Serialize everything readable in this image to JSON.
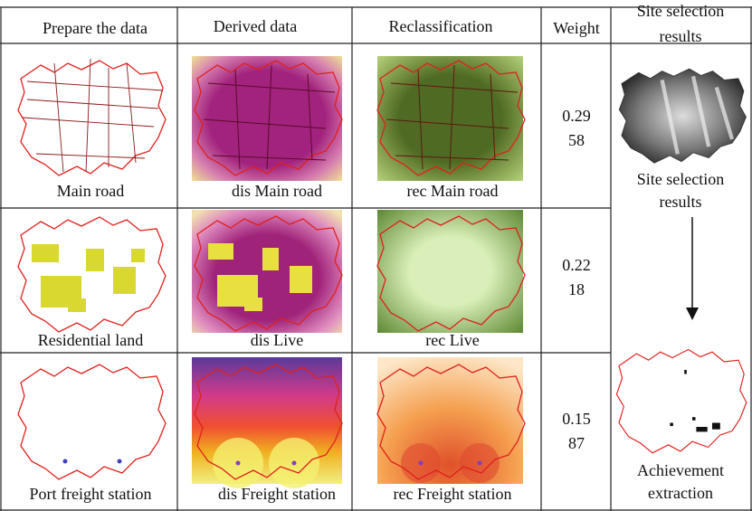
{
  "header": {
    "columns": [
      "Prepare the data",
      "Derived data",
      "Reclassification",
      "Weight"
    ],
    "results_column": [
      "Site selection",
      "results"
    ]
  },
  "rows": [
    {
      "source": "Main road",
      "derived": "dis Main road",
      "reclass": "rec Main road",
      "weight_lines": [
        "0.29",
        "58"
      ]
    },
    {
      "source": "Residential land",
      "derived": "dis Live",
      "reclass": "rec Live",
      "weight_lines": [
        "0.22",
        "18"
      ]
    },
    {
      "source": "Port freight station",
      "derived": "dis Freight station",
      "reclass": "rec Freight station",
      "weight_lines": [
        "0.15",
        "87"
      ]
    }
  ],
  "results": {
    "site_selection": [
      "Site selection",
      "results"
    ],
    "achievement": [
      "Achievement",
      "extraction"
    ]
  }
}
